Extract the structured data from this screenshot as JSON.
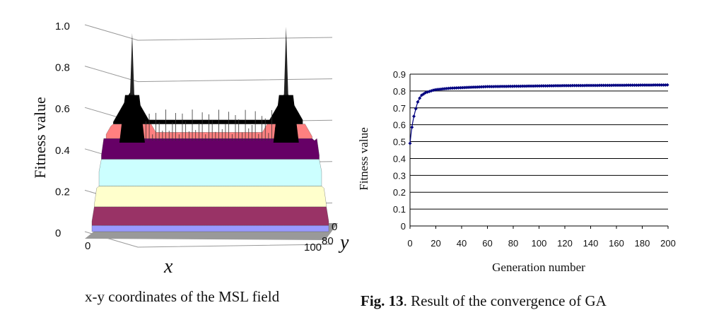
{
  "left_figure": {
    "ylabel": "Fitness value",
    "xlabel": "x",
    "ylabel_right": "y",
    "z_tick_labels": [
      "1.0",
      "0.8",
      "0.6",
      "0.4",
      "0.2",
      "0"
    ],
    "x_tick_labels": [
      "0",
      "100"
    ],
    "y_tick_labels": [
      "0",
      "80"
    ],
    "caption": "x-y coordinates of the MSL field",
    "band_colors": [
      "#9999ff",
      "#993366",
      "#ffffcc",
      "#ccffff",
      "#660066",
      "#ff8080",
      "#000000"
    ]
  },
  "right_caption": {
    "bold": "Fig. 13",
    "text": ". Result of the convergence of GA"
  },
  "chart_data": [
    {
      "type": "surface",
      "title": "",
      "xlabel": "x",
      "ylabel": "y",
      "zlabel": "Fitness value",
      "x_range": [
        0,
        100
      ],
      "y_ticks_shown": [
        0,
        80
      ],
      "y_max": 100,
      "zlim": [
        0,
        1.0
      ],
      "z_ticks": [
        0,
        0.2,
        0.4,
        0.6,
        0.8,
        1.0
      ],
      "peaks": [
        {
          "x": 17,
          "z": 0.96
        },
        {
          "x": 82,
          "z": 0.99
        }
      ]
    },
    {
      "type": "line",
      "title": "",
      "xlabel": "Generation number",
      "ylabel": "Fitness value",
      "xlim": [
        0,
        200
      ],
      "ylim": [
        0,
        0.9
      ],
      "x_ticks": [
        0,
        20,
        40,
        60,
        80,
        100,
        120,
        140,
        160,
        180,
        200
      ],
      "y_ticks": [
        "0",
        "0.1",
        "0.2",
        "0.3",
        "0.4",
        "0.5",
        "0.6",
        "0.7",
        "0.8",
        "0.9"
      ],
      "grid": "horizontal",
      "marker_color": "#000080",
      "series": [
        {
          "x": [
            0,
            1,
            2,
            3,
            4,
            5,
            6,
            7,
            8,
            9,
            10,
            12,
            14,
            16,
            18,
            20,
            25,
            30,
            40,
            50,
            60,
            80,
            100,
            120,
            140,
            160,
            180,
            200
          ],
          "y": [
            0.49,
            0.56,
            0.61,
            0.65,
            0.68,
            0.71,
            0.735,
            0.75,
            0.765,
            0.775,
            0.78,
            0.79,
            0.795,
            0.8,
            0.805,
            0.808,
            0.812,
            0.816,
            0.82,
            0.823,
            0.826,
            0.828,
            0.83,
            0.832,
            0.833,
            0.834,
            0.835,
            0.836
          ]
        }
      ]
    }
  ]
}
